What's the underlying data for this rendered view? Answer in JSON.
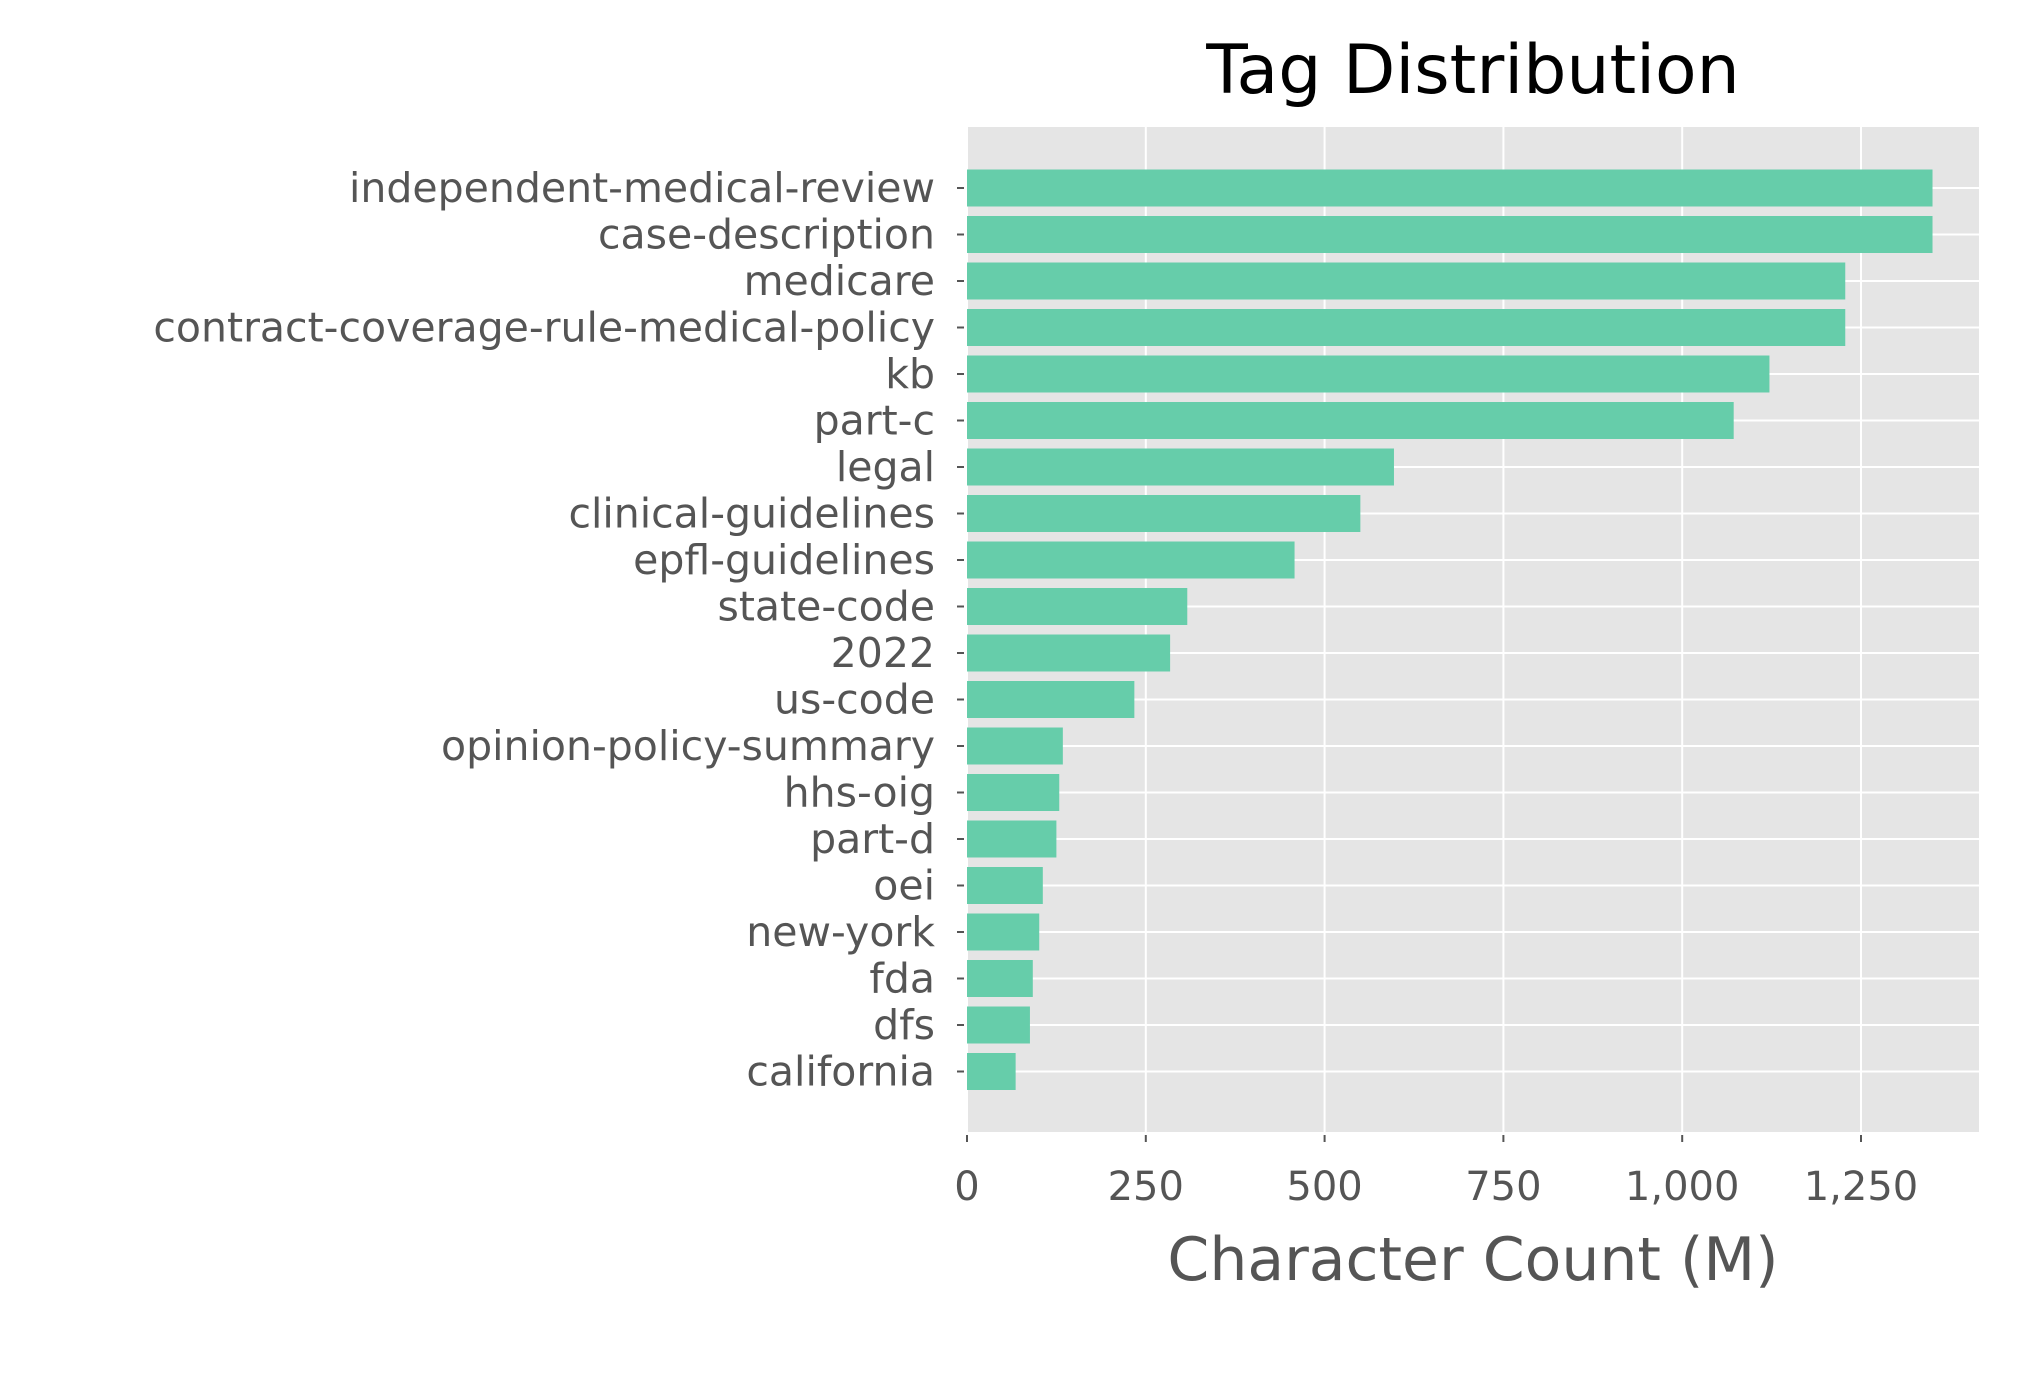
{
  "chart_data": {
    "type": "bar",
    "orientation": "horizontal",
    "title": "Tag Distribution",
    "xlabel": "Character Count (M)",
    "ylabel": "",
    "categories": [
      "independent-medical-review",
      "case-description",
      "medicare",
      "contract-coverage-rule-medical-policy",
      "kb",
      "part-c",
      "legal",
      "clinical-guidelines",
      "epfl-guidelines",
      "state-code",
      "2022",
      "us-code",
      "opinion-policy-summary",
      "hhs-oig",
      "part-d",
      "oei",
      "new-york",
      "fda",
      "dfs",
      "california"
    ],
    "values": [
      1350,
      1350,
      1228,
      1228,
      1122,
      1072,
      597,
      550,
      458,
      308,
      284,
      234,
      134,
      129,
      125,
      106,
      101,
      92,
      88,
      68
    ],
    "xlim": [
      0,
      1415
    ],
    "xticks": [
      0,
      250,
      500,
      750,
      1000,
      1250
    ],
    "xtick_labels": [
      "0",
      "250",
      "500",
      "750",
      "1,000",
      "1,250"
    ],
    "grid": true,
    "style": "ggplot",
    "colors": {
      "bar": "#66cdaa",
      "plot_background": "#e5e5e5",
      "grid": "#ffffff",
      "tick_text": "#555555",
      "title_text": "#000000"
    }
  }
}
